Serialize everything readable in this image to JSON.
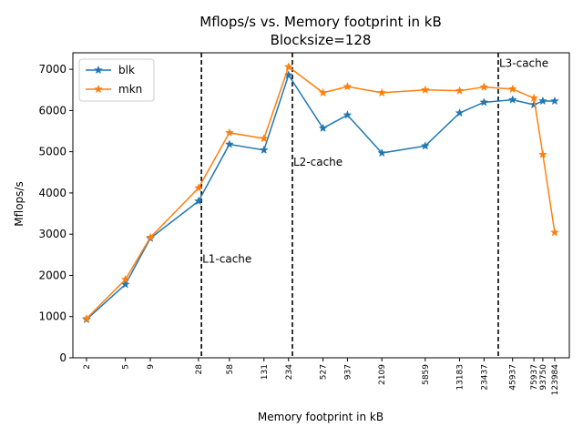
{
  "chart_data": {
    "type": "line",
    "title_line1": "Mflops/s vs. Memory footprint in kB",
    "title_line2": "Blocksize=128",
    "xlabel": "Memory footprint in kB",
    "ylabel": "Mflops/s",
    "x_scale": "log",
    "x": [
      2,
      5,
      9,
      28,
      58,
      131,
      234,
      527,
      937,
      2109,
      5859,
      13183,
      23437,
      45937,
      75937,
      93750,
      123984
    ],
    "x_tick_labels": [
      "2",
      "5",
      "9",
      "28",
      "58",
      "131",
      "234",
      "527",
      "937",
      "2109",
      "5859",
      "13183",
      "23437",
      "45937",
      "75937",
      "93750",
      "123984"
    ],
    "ylim": [
      0,
      7400
    ],
    "y_ticks": [
      0,
      1000,
      2000,
      3000,
      4000,
      5000,
      6000,
      7000
    ],
    "y_tick_labels": [
      "0",
      "1000",
      "2000",
      "3000",
      "4000",
      "5000",
      "6000",
      "7000"
    ],
    "grid": false,
    "legend_position": "top-left",
    "series": [
      {
        "name": "blk",
        "color": "#1f77b4",
        "marker": "star",
        "values": [
          930,
          1780,
          2900,
          3800,
          5180,
          5040,
          6860,
          5570,
          5890,
          4970,
          5140,
          5940,
          6200,
          6260,
          6140,
          6230,
          6230
        ]
      },
      {
        "name": "mkn",
        "color": "#ff7f0e",
        "marker": "star",
        "values": [
          950,
          1900,
          2920,
          4120,
          5460,
          5320,
          7060,
          6430,
          6580,
          6430,
          6500,
          6480,
          6570,
          6520,
          6300,
          4930,
          3040
        ]
      }
    ],
    "vertical_lines": [
      {
        "x": 30,
        "label": "L1-cache",
        "label_y": 2400
      },
      {
        "x": 256,
        "label": "L2-cache",
        "label_y": 4750
      },
      {
        "x": 32768,
        "label": "L3-cache",
        "label_y": 7150
      }
    ]
  }
}
